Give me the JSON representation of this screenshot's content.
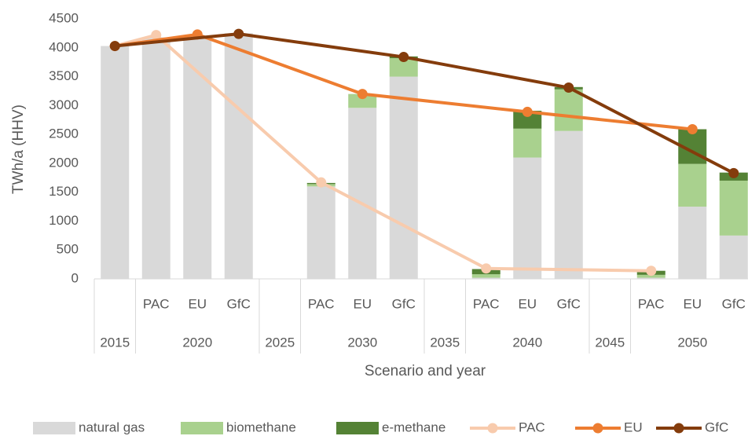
{
  "chart_data": {
    "type": "bar",
    "y_axis_label": "TWh/a (HHV)",
    "x_axis_label": "Scenario and year",
    "groups": [
      {
        "label": "2015",
        "categories": [
          null
        ]
      },
      {
        "label": "2020",
        "categories": [
          "PAC",
          "EU",
          "GfC"
        ]
      },
      {
        "label": "2025",
        "categories": [
          null
        ]
      },
      {
        "label": "2030",
        "categories": [
          "PAC",
          "EU",
          "GfC"
        ]
      },
      {
        "label": "2035",
        "categories": [
          null
        ]
      },
      {
        "label": "2040",
        "categories": [
          "PAC",
          "EU",
          "GfC"
        ]
      },
      {
        "label": "2045",
        "categories": [
          null
        ]
      },
      {
        "label": "2050",
        "categories": [
          "PAC",
          "EU",
          "GfC"
        ]
      }
    ],
    "ylim": [
      0,
      4500
    ],
    "yticks": [
      0,
      500,
      1000,
      1500,
      2000,
      2500,
      3000,
      3500,
      4000,
      4500
    ],
    "grid": false,
    "stacked": true,
    "connect_gaps": true,
    "legend": "bottom",
    "series": [
      {
        "name": "natural gas",
        "type": "bar",
        "color": "#d9d9d9",
        "values": [
          4030,
          4180,
          4200,
          4250,
          null,
          1600,
          2960,
          3500,
          null,
          20,
          2100,
          2560,
          null,
          20,
          1250,
          750
        ]
      },
      {
        "name": "biomethane",
        "type": "bar",
        "color": "#a9d18e",
        "values": [
          null,
          null,
          null,
          null,
          null,
          40,
          240,
          320,
          null,
          60,
          500,
          720,
          null,
          50,
          740,
          950
        ]
      },
      {
        "name": "e-methane",
        "type": "bar",
        "color": "#548235",
        "values": [
          null,
          null,
          null,
          null,
          null,
          20,
          null,
          30,
          null,
          90,
          310,
          40,
          null,
          70,
          600,
          140
        ]
      },
      {
        "name": "PAC",
        "type": "line",
        "color": "#f8cbad",
        "values": [
          4030,
          4220,
          null,
          null,
          null,
          1670,
          null,
          null,
          null,
          180,
          null,
          null,
          null,
          140,
          null,
          null
        ]
      },
      {
        "name": "EU",
        "type": "line",
        "color": "#ed7d31",
        "values": [
          4030,
          null,
          4230,
          null,
          null,
          null,
          3200,
          null,
          null,
          null,
          2890,
          null,
          null,
          null,
          2590,
          null
        ]
      },
      {
        "name": "GfC",
        "type": "line",
        "color": "#843c0c",
        "values": [
          4030,
          null,
          null,
          4240,
          null,
          null,
          null,
          3840,
          null,
          null,
          null,
          3310,
          null,
          null,
          null,
          1830
        ]
      }
    ]
  }
}
